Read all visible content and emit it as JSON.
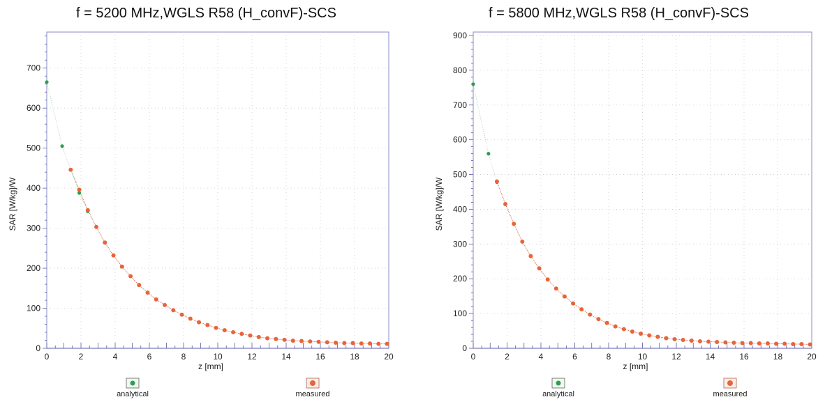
{
  "chart_data": [
    {
      "type": "scatter",
      "title": "f = 5200 MHz,WGLS R58 (H_convF)-SCS",
      "xlabel": "z [mm]",
      "ylabel": "SAR [W/kg]/W",
      "xlim": [
        0,
        20
      ],
      "ylim": [
        0,
        790
      ],
      "xticks": [
        0,
        2,
        4,
        6,
        8,
        10,
        12,
        14,
        16,
        18,
        20
      ],
      "yticks": [
        0,
        100,
        200,
        300,
        400,
        500,
        600,
        700
      ],
      "grid": true,
      "legend_position": "bottom",
      "series": [
        {
          "name": "analytical",
          "color": "#2e9e4f",
          "x": [
            0,
            0.9,
            1.9,
            2.4
          ],
          "y": [
            665,
            505,
            388,
            342
          ]
        },
        {
          "name": "measured",
          "color": "#e8643a",
          "x": [
            1.4,
            1.9,
            2.4,
            2.9,
            3.4,
            3.9,
            4.4,
            4.9,
            5.4,
            5.9,
            6.4,
            6.9,
            7.4,
            7.9,
            8.4,
            8.9,
            9.4,
            9.9,
            10.4,
            10.9,
            11.4,
            11.9,
            12.4,
            12.9,
            13.4,
            13.9,
            14.4,
            14.9,
            15.4,
            15.9,
            16.4,
            16.9,
            17.4,
            17.9,
            18.4,
            18.9,
            19.4,
            19.9
          ],
          "y": [
            446,
            396,
            345,
            303,
            264,
            232,
            204,
            180,
            158,
            139,
            122,
            108,
            95,
            84,
            74,
            65,
            58,
            51,
            45,
            40,
            36,
            32,
            28,
            25,
            23,
            21,
            19,
            18,
            17,
            16,
            15,
            14,
            13,
            13,
            12,
            12,
            11,
            11
          ]
        }
      ]
    },
    {
      "type": "scatter",
      "title": "f = 5800 MHz,WGLS R58 (H_convF)-SCS",
      "xlabel": "z [mm]",
      "ylabel": "SAR [W/kg]/W",
      "xlim": [
        0,
        20
      ],
      "ylim": [
        0,
        910
      ],
      "xticks": [
        0,
        2,
        4,
        6,
        8,
        10,
        12,
        14,
        16,
        18,
        20
      ],
      "yticks": [
        0,
        100,
        200,
        300,
        400,
        500,
        600,
        700,
        800,
        900
      ],
      "grid": true,
      "legend_position": "bottom",
      "series": [
        {
          "name": "analytical",
          "color": "#2e9e4f",
          "x": [
            0,
            0.9,
            1.4
          ],
          "y": [
            760,
            560,
            478
          ]
        },
        {
          "name": "measured",
          "color": "#e8643a",
          "x": [
            1.4,
            1.9,
            2.4,
            2.9,
            3.4,
            3.9,
            4.4,
            4.9,
            5.4,
            5.9,
            6.4,
            6.9,
            7.4,
            7.9,
            8.4,
            8.9,
            9.4,
            9.9,
            10.4,
            10.9,
            11.4,
            11.9,
            12.4,
            12.9,
            13.4,
            13.9,
            14.4,
            14.9,
            15.4,
            15.9,
            16.4,
            16.9,
            17.4,
            17.9,
            18.4,
            18.9,
            19.4,
            19.9
          ],
          "y": [
            480,
            415,
            358,
            307,
            265,
            230,
            198,
            172,
            149,
            129,
            112,
            97,
            84,
            73,
            63,
            55,
            48,
            42,
            37,
            33,
            29,
            26,
            24,
            22,
            20,
            19,
            18,
            17,
            16,
            15,
            15,
            14,
            14,
            13,
            13,
            12,
            12,
            11
          ]
        }
      ]
    }
  ]
}
